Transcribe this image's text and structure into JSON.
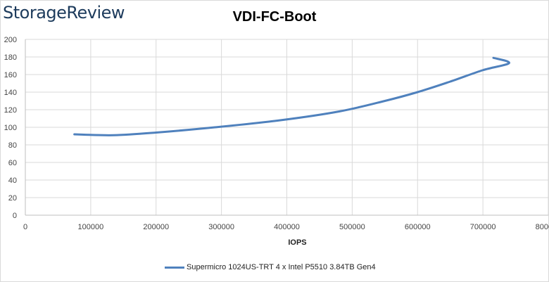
{
  "brand": {
    "logo_text": "StorageReview",
    "logo_color": "#1d3b5c"
  },
  "chart_data": {
    "type": "line",
    "title": "VDI-FC-Boot",
    "xlabel": "IOPS",
    "ylabel": "",
    "xlim": [
      0,
      800000
    ],
    "ylim": [
      0,
      200
    ],
    "x_ticks": [
      "0",
      "100000",
      "200000",
      "300000",
      "400000",
      "500000",
      "600000",
      "700000",
      "800000"
    ],
    "y_ticks": [
      "0",
      "20",
      "40",
      "60",
      "80",
      "100",
      "120",
      "140",
      "160",
      "180",
      "200"
    ],
    "grid": true,
    "legend_position": "bottom",
    "series": [
      {
        "name": "Supermicro 1024US-TRT 4 x Intel P5510 3.84TB Gen4",
        "color": "#4f81bd",
        "points": [
          [
            75000,
            92
          ],
          [
            135000,
            91
          ],
          [
            200000,
            94
          ],
          [
            290000,
            100
          ],
          [
            390000,
            108
          ],
          [
            480000,
            118
          ],
          [
            550000,
            130
          ],
          [
            600000,
            140
          ],
          [
            650000,
            152
          ],
          [
            700000,
            165
          ],
          [
            740000,
            173
          ],
          [
            716000,
            179
          ]
        ]
      }
    ]
  }
}
